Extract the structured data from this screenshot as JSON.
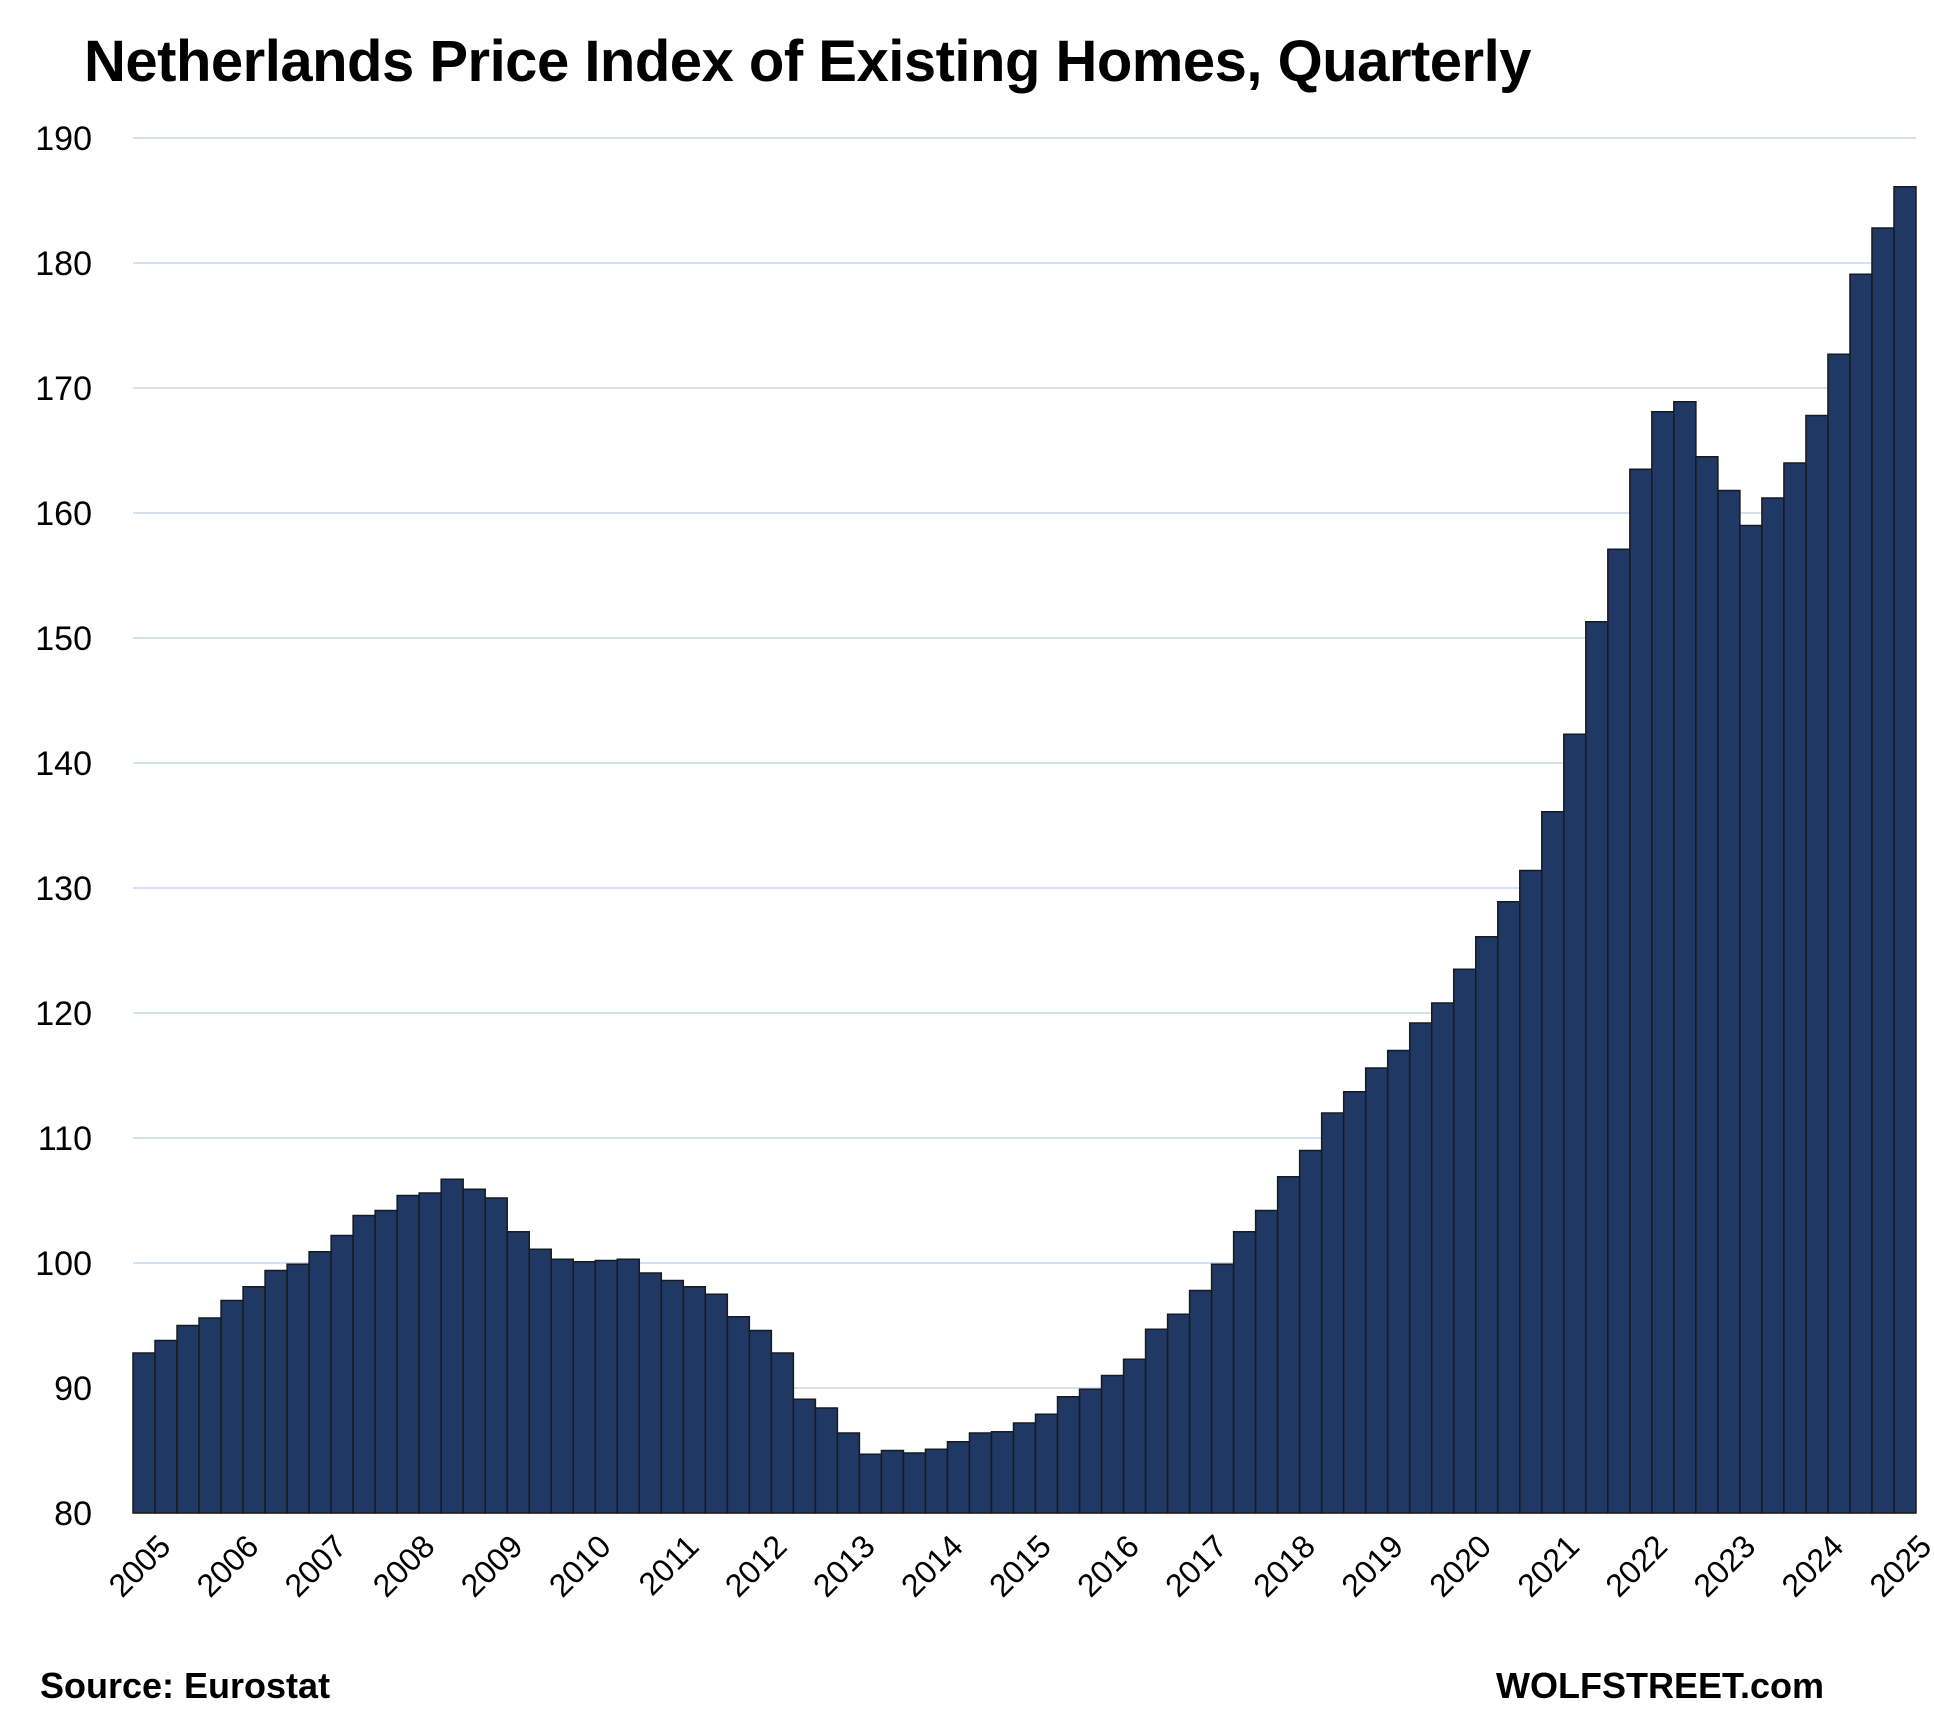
{
  "chart_data": {
    "type": "bar",
    "title": "Netherlands Price Index of Existing Homes, Quarterly",
    "xlabel": "",
    "ylabel": "",
    "ylim": [
      80,
      190
    ],
    "yticks": [
      80,
      90,
      100,
      110,
      120,
      130,
      140,
      150,
      160,
      170,
      180,
      190
    ],
    "xtick_labels": [
      "2005",
      "2006",
      "2007",
      "2008",
      "2009",
      "2010",
      "2011",
      "2012",
      "2013",
      "2014",
      "2015",
      "2016",
      "2017",
      "2018",
      "2019",
      "2020",
      "2021",
      "2022",
      "2023",
      "2024",
      "2025"
    ],
    "grid": true,
    "legend": "none",
    "bar_color": "#1f3864",
    "bar_edge_color": "#1a1a1a",
    "grid_color": "#c9d6e8",
    "categories": [
      "2005-Q1",
      "2005-Q2",
      "2005-Q3",
      "2005-Q4",
      "2006-Q1",
      "2006-Q2",
      "2006-Q3",
      "2006-Q4",
      "2007-Q1",
      "2007-Q2",
      "2007-Q3",
      "2007-Q4",
      "2008-Q1",
      "2008-Q2",
      "2008-Q3",
      "2008-Q4",
      "2009-Q1",
      "2009-Q2",
      "2009-Q3",
      "2009-Q4",
      "2010-Q1",
      "2010-Q2",
      "2010-Q3",
      "2010-Q4",
      "2011-Q1",
      "2011-Q2",
      "2011-Q3",
      "2011-Q4",
      "2012-Q1",
      "2012-Q2",
      "2012-Q3",
      "2012-Q4",
      "2013-Q1",
      "2013-Q2",
      "2013-Q3",
      "2013-Q4",
      "2014-Q1",
      "2014-Q2",
      "2014-Q3",
      "2014-Q4",
      "2015-Q1",
      "2015-Q2",
      "2015-Q3",
      "2015-Q4",
      "2016-Q1",
      "2016-Q2",
      "2016-Q3",
      "2016-Q4",
      "2017-Q1",
      "2017-Q2",
      "2017-Q3",
      "2017-Q4",
      "2018-Q1",
      "2018-Q2",
      "2018-Q3",
      "2018-Q4",
      "2019-Q1",
      "2019-Q2",
      "2019-Q3",
      "2019-Q4",
      "2020-Q1",
      "2020-Q2",
      "2020-Q3",
      "2020-Q4",
      "2021-Q1",
      "2021-Q2",
      "2021-Q3",
      "2021-Q4",
      "2022-Q1",
      "2022-Q2",
      "2022-Q3",
      "2022-Q4",
      "2023-Q1",
      "2023-Q2",
      "2023-Q3",
      "2023-Q4",
      "2024-Q1",
      "2024-Q2",
      "2024-Q3",
      "2024-Q4",
      "2025-Q1"
    ],
    "values": [
      92.8,
      93.8,
      95.0,
      95.6,
      97.0,
      98.1,
      99.4,
      99.9,
      100.9,
      102.2,
      103.8,
      104.2,
      105.4,
      105.6,
      106.7,
      105.9,
      105.2,
      102.5,
      101.1,
      100.3,
      100.1,
      100.2,
      100.3,
      99.2,
      98.6,
      98.1,
      97.5,
      95.7,
      94.6,
      92.8,
      89.1,
      88.4,
      86.4,
      84.7,
      85.0,
      84.8,
      85.1,
      85.7,
      86.4,
      86.5,
      87.2,
      87.9,
      89.3,
      89.9,
      91.0,
      92.3,
      94.7,
      95.9,
      97.8,
      99.9,
      102.5,
      104.2,
      106.9,
      109.0,
      112.0,
      113.7,
      115.6,
      117.0,
      119.2,
      120.8,
      123.5,
      126.1,
      128.9,
      131.4,
      136.1,
      142.3,
      151.3,
      157.1,
      163.5,
      168.1,
      168.9,
      164.5,
      161.8,
      159.0,
      161.2,
      164.0,
      167.8,
      172.7,
      179.1,
      182.8,
      186.1
    ]
  },
  "footer": {
    "source": "Source: Eurostat",
    "brand": "WOLFSTREET.com"
  }
}
